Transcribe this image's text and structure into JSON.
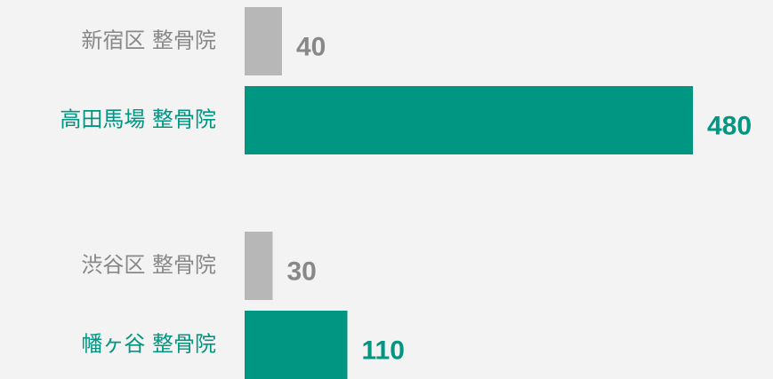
{
  "chart_data": {
    "type": "hbar",
    "categories": [
      "新宿区 整骨院",
      "高田馬場 整骨院",
      "渋谷区 整骨院",
      "幡ヶ谷 整骨院"
    ],
    "values": [
      40,
      480,
      30,
      110
    ],
    "colors": [
      "#b7b7b7",
      "#009682",
      "#b7b7b7",
      "#009682"
    ],
    "label_colors": [
      "#888888",
      "#009682",
      "#888888",
      "#009682"
    ],
    "xlim": [
      0,
      480
    ]
  }
}
